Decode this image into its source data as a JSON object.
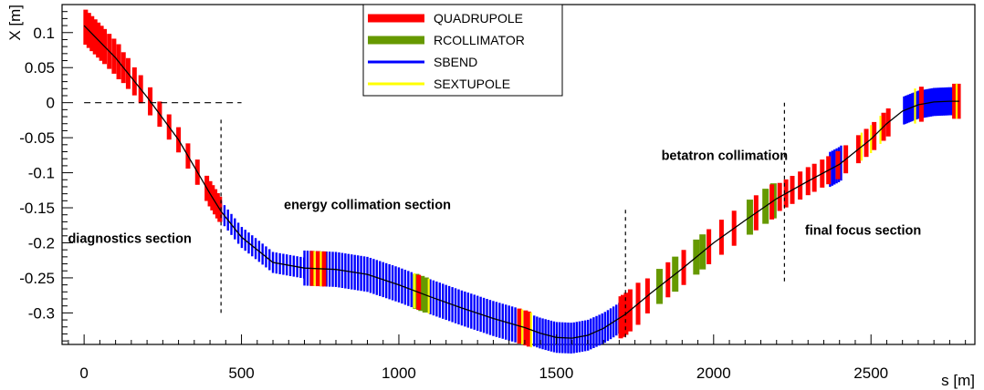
{
  "chart_data": {
    "type": "scatter",
    "title": "",
    "xlabel": "s [m]",
    "ylabel": "X [m]",
    "xlim": [
      -70,
      2830
    ],
    "ylim": [
      -0.345,
      0.14
    ],
    "x_ticks": [
      0,
      500,
      1000,
      1500,
      2000,
      2500
    ],
    "x_tick_labels": [
      "0",
      "500",
      "1000",
      "1500",
      "2000",
      "2500"
    ],
    "y_ticks": [
      0.1,
      0.05,
      0,
      -0.05,
      -0.1,
      -0.15,
      -0.2,
      -0.25,
      -0.3
    ],
    "y_tick_labels": [
      "0.1",
      "0.05",
      "0",
      "-0.05",
      "-0.1",
      "-0.15",
      "-0.2",
      "-0.25",
      "-0.3"
    ],
    "grid": false,
    "legend_position": "top-center",
    "legend": [
      {
        "name": "QUADRUPOLE",
        "color": "#ff0000",
        "style": "thick"
      },
      {
        "name": "RCOLLIMATOR",
        "color": "#669900",
        "style": "thick"
      },
      {
        "name": "SBEND",
        "color": "#0000ff",
        "style": "thin"
      },
      {
        "name": "SEXTUPOLE",
        "color": "#ffff00",
        "style": "thin"
      }
    ],
    "annotations": [
      {
        "text": "diagnostics section",
        "x": 145,
        "y": -0.2
      },
      {
        "text": "energy collimation section",
        "x": 900,
        "y": -0.152
      },
      {
        "text": "betatron collimation",
        "x": 2035,
        "y": -0.082
      },
      {
        "text": "final focus section",
        "x": 2475,
        "y": -0.188
      }
    ],
    "dividers": [
      {
        "type": "dashed-horizontal",
        "x": [
          0,
          500
        ],
        "y": 0
      },
      {
        "type": "dashed-vertical",
        "x": 435,
        "y": [
          -0.3,
          -0.02
        ]
      },
      {
        "type": "dashed-vertical",
        "x": 1720,
        "y": [
          -0.335,
          -0.15
        ]
      },
      {
        "type": "dashed-vertical",
        "x": 2225,
        "y": [
          -0.255,
          0.005
        ]
      }
    ],
    "orbit": {
      "name": "",
      "color": "#000000",
      "s": [
        0,
        100,
        200,
        300,
        400,
        435,
        500,
        600,
        700,
        800,
        900,
        1000,
        1100,
        1200,
        1300,
        1400,
        1450,
        1500,
        1550,
        1600,
        1650,
        1720,
        1800,
        1900,
        2000,
        2100,
        2200,
        2300,
        2400,
        2500,
        2550,
        2600,
        2650,
        2700,
        2750,
        2780
      ],
      "x": [
        0.11,
        0.064,
        0.008,
        -0.053,
        -0.13,
        -0.155,
        -0.192,
        -0.228,
        -0.236,
        -0.238,
        -0.245,
        -0.26,
        -0.277,
        -0.293,
        -0.308,
        -0.321,
        -0.329,
        -0.335,
        -0.336,
        -0.332,
        -0.322,
        -0.302,
        -0.272,
        -0.237,
        -0.2,
        -0.168,
        -0.137,
        -0.112,
        -0.088,
        -0.052,
        -0.03,
        -0.012,
        -0.003,
        0.001,
        0.002,
        0.002
      ]
    },
    "elements": {
      "SBEND": [
        {
          "s_start": 435,
          "s_end": 700,
          "step": 11,
          "half_height": 0.015
        },
        {
          "s_start": 700,
          "s_end": 1040,
          "step": 10,
          "half_height": 0.025
        },
        {
          "s_start": 1100,
          "s_end": 1375,
          "step": 10,
          "half_height": 0.025
        },
        {
          "s_start": 1430,
          "s_end": 1700,
          "step": 9,
          "half_height": 0.022
        },
        {
          "s_start": 2370,
          "s_end": 2410,
          "step": 7,
          "half_height": 0.025
        },
        {
          "s_start": 2605,
          "s_end": 2775,
          "step": 5,
          "half_height": 0.02
        }
      ],
      "QUADRUPOLE": [
        {
          "s": 5,
          "dx": 0.025
        },
        {
          "s": 15,
          "dx": 0.025
        },
        {
          "s": 25,
          "dx": 0.025
        },
        {
          "s": 35,
          "dx": 0.025
        },
        {
          "s": 45,
          "dx": 0.025
        },
        {
          "s": 55,
          "dx": 0.025
        },
        {
          "s": 65,
          "dx": 0.025
        },
        {
          "s": 80,
          "dx": 0.025
        },
        {
          "s": 95,
          "dx": 0.025
        },
        {
          "s": 110,
          "dx": 0.025
        },
        {
          "s": 125,
          "dx": 0.022
        },
        {
          "s": 140,
          "dx": 0.022
        },
        {
          "s": 160,
          "dx": 0.02
        },
        {
          "s": 180,
          "dx": 0.02
        },
        {
          "s": 210,
          "dx": 0.02
        },
        {
          "s": 240,
          "dx": 0.018
        },
        {
          "s": 270,
          "dx": 0.018
        },
        {
          "s": 300,
          "dx": 0.018
        },
        {
          "s": 330,
          "dx": 0.018
        },
        {
          "s": 360,
          "dx": 0.018
        },
        {
          "s": 390,
          "dx": 0.018
        },
        {
          "s": 400,
          "dx": 0.018
        },
        {
          "s": 408,
          "dx": 0.018
        },
        {
          "s": 416,
          "dx": 0.018
        },
        {
          "s": 424,
          "dx": 0.018
        },
        {
          "s": 431,
          "dx": 0.018
        },
        {
          "s": 725,
          "dx": 0.025
        },
        {
          "s": 743,
          "dx": 0.025
        },
        {
          "s": 762,
          "dx": 0.025
        },
        {
          "s": 1063,
          "dx": 0.025
        },
        {
          "s": 1383,
          "dx": 0.025
        },
        {
          "s": 1403,
          "dx": 0.025
        },
        {
          "s": 1413,
          "dx": 0.025
        },
        {
          "s": 1705,
          "dx": 0.03
        },
        {
          "s": 1712,
          "dx": 0.03
        },
        {
          "s": 1722,
          "dx": 0.03
        },
        {
          "s": 1735,
          "dx": 0.03
        },
        {
          "s": 1760,
          "dx": 0.03
        },
        {
          "s": 1790,
          "dx": 0.025
        },
        {
          "s": 1855,
          "dx": 0.025
        },
        {
          "s": 1905,
          "dx": 0.025
        },
        {
          "s": 1985,
          "dx": 0.025
        },
        {
          "s": 2025,
          "dx": 0.025
        },
        {
          "s": 2065,
          "dx": 0.025
        },
        {
          "s": 2135,
          "dx": 0.025
        },
        {
          "s": 2185,
          "dx": 0.025
        },
        {
          "s": 2210,
          "dx": 0.02
        },
        {
          "s": 2230,
          "dx": 0.02
        },
        {
          "s": 2250,
          "dx": 0.02
        },
        {
          "s": 2275,
          "dx": 0.02
        },
        {
          "s": 2300,
          "dx": 0.02
        },
        {
          "s": 2320,
          "dx": 0.02
        },
        {
          "s": 2345,
          "dx": 0.02
        },
        {
          "s": 2365,
          "dx": 0.02
        },
        {
          "s": 2395,
          "dx": 0.02
        },
        {
          "s": 2420,
          "dx": 0.02
        },
        {
          "s": 2460,
          "dx": 0.02
        },
        {
          "s": 2485,
          "dx": 0.02
        },
        {
          "s": 2510,
          "dx": 0.02
        },
        {
          "s": 2540,
          "dx": 0.02
        },
        {
          "s": 2555,
          "dx": 0.02
        },
        {
          "s": 2660,
          "dx": 0.025
        },
        {
          "s": 2765,
          "dx": 0.025
        },
        {
          "s": 2778,
          "dx": 0.025
        }
      ],
      "RCOLLIMATOR": [
        {
          "s": 1055,
          "dx": 0.025
        },
        {
          "s": 1072,
          "dx": 0.025
        },
        {
          "s": 1085,
          "dx": 0.025
        },
        {
          "s": 1828,
          "dx": 0.025
        },
        {
          "s": 1878,
          "dx": 0.025
        },
        {
          "s": 1945,
          "dx": 0.025
        },
        {
          "s": 1965,
          "dx": 0.025
        },
        {
          "s": 2115,
          "dx": 0.025
        },
        {
          "s": 2165,
          "dx": 0.025
        },
        {
          "s": 2190,
          "dx": 0.025
        }
      ],
      "SEXTUPOLE": [
        {
          "s": 732,
          "dx": 0.025
        },
        {
          "s": 752,
          "dx": 0.025
        },
        {
          "s": 1050,
          "dx": 0.025
        },
        {
          "s": 1095,
          "dx": 0.025
        },
        {
          "s": 1392,
          "dx": 0.025
        },
        {
          "s": 1420,
          "dx": 0.025
        },
        {
          "s": 2470,
          "dx": 0.02
        },
        {
          "s": 2500,
          "dx": 0.02
        },
        {
          "s": 2530,
          "dx": 0.02
        },
        {
          "s": 2640,
          "dx": 0.025
        },
        {
          "s": 2772,
          "dx": 0.025
        }
      ]
    }
  }
}
